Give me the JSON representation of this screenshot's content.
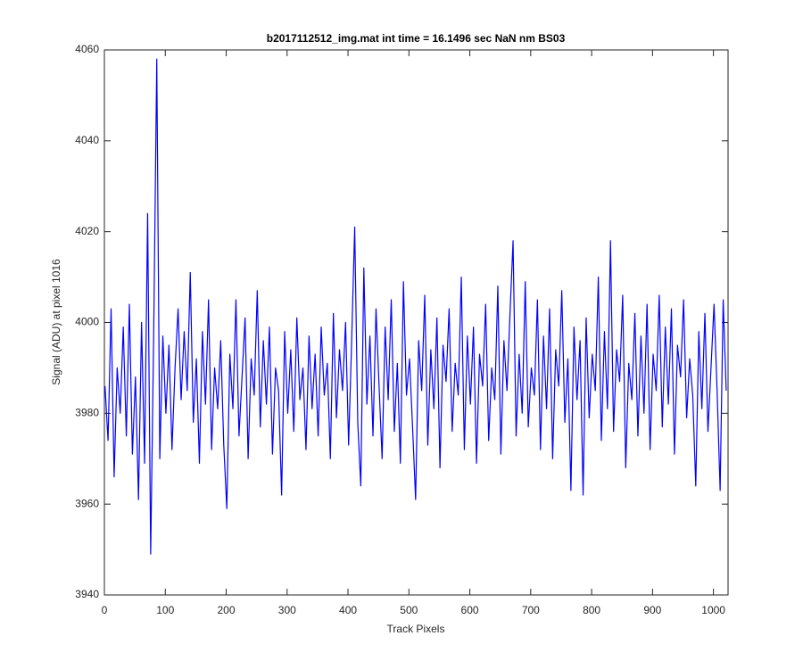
{
  "chart_data": {
    "type": "line",
    "title": "b2017112512_img.mat int time = 16.1496 sec  NaN nm BS03",
    "xlabel": "Track Pixels",
    "ylabel": "Signal (ADU) at pixel 1016",
    "color": "#0000ff",
    "xlim": [
      0,
      1024
    ],
    "xticks": [
      0,
      100,
      200,
      300,
      400,
      500,
      600,
      700,
      800,
      900,
      1000
    ],
    "ylim": [
      3940,
      4060
    ],
    "yticks": [
      3940,
      3960,
      3980,
      4000,
      4020,
      4040,
      4060
    ],
    "x": [
      1,
      6,
      11,
      16,
      21,
      26,
      31,
      36,
      41,
      46,
      51,
      56,
      61,
      66,
      71,
      76,
      81,
      86,
      91,
      96,
      101,
      106,
      111,
      116,
      121,
      126,
      131,
      136,
      141,
      146,
      151,
      156,
      161,
      166,
      171,
      176,
      181,
      186,
      191,
      196,
      201,
      206,
      211,
      216,
      221,
      226,
      231,
      236,
      241,
      246,
      251,
      256,
      261,
      266,
      271,
      276,
      281,
      286,
      291,
      296,
      301,
      306,
      311,
      316,
      321,
      326,
      331,
      336,
      341,
      346,
      351,
      356,
      361,
      366,
      371,
      376,
      381,
      386,
      391,
      396,
      401,
      406,
      411,
      416,
      421,
      426,
      431,
      436,
      441,
      446,
      451,
      456,
      461,
      466,
      471,
      476,
      481,
      486,
      491,
      496,
      501,
      506,
      511,
      516,
      521,
      526,
      531,
      536,
      541,
      546,
      551,
      556,
      561,
      566,
      571,
      576,
      581,
      586,
      591,
      596,
      601,
      606,
      611,
      616,
      621,
      626,
      631,
      636,
      641,
      646,
      651,
      656,
      661,
      666,
      671,
      676,
      681,
      686,
      691,
      696,
      701,
      706,
      711,
      716,
      721,
      726,
      731,
      736,
      741,
      746,
      751,
      756,
      761,
      766,
      771,
      776,
      781,
      786,
      791,
      796,
      801,
      806,
      811,
      816,
      821,
      826,
      831,
      836,
      841,
      846,
      851,
      856,
      861,
      866,
      871,
      876,
      881,
      886,
      891,
      896,
      901,
      906,
      911,
      916,
      921,
      926,
      931,
      936,
      941,
      946,
      951,
      956,
      961,
      966,
      971,
      976,
      981,
      986,
      991,
      996,
      1001,
      1006,
      1011,
      1016,
      1021
    ],
    "values": [
      3986,
      3974,
      4003,
      3966,
      3990,
      3980,
      3999,
      3975,
      4004,
      3971,
      3988,
      3961,
      4000,
      3969,
      4024,
      3949,
      3998,
      4058,
      3970,
      3997,
      3980,
      3995,
      3972,
      3990,
      4003,
      3983,
      3998,
      3985,
      4011,
      3978,
      3992,
      3969,
      3998,
      3982,
      4005,
      3972,
      3990,
      3981,
      3996,
      3973,
      3959,
      3993,
      3981,
      4005,
      3975,
      3988,
      4001,
      3970,
      3992,
      3984,
      4007,
      3977,
      3996,
      3982,
      3999,
      3971,
      3990,
      3985,
      3962,
      3998,
      3980,
      3994,
      3976,
      4001,
      3983,
      3990,
      3972,
      3997,
      3981,
      3993,
      3975,
      3999,
      3984,
      3991,
      3970,
      4002,
      3979,
      3994,
      3985,
      4000,
      3973,
      3996,
      4021,
      3978,
      3964,
      4012,
      3982,
      3997,
      3975,
      4003,
      3986,
      3970,
      3999,
      3983,
      4005,
      3976,
      3991,
      3969,
      4009,
      3984,
      3992,
      3977,
      3961,
      3996,
      3985,
      4006,
      3973,
      3994,
      3981,
      4001,
      3968,
      3995,
      3987,
      4003,
      3976,
      3991,
      3984,
      4010,
      3972,
      3997,
      3982,
      3999,
      3969,
      3993,
      3986,
      4004,
      3974,
      3990,
      3983,
      4008,
      3971,
      3996,
      3985,
      4002,
      4018,
      3975,
      3993,
      3980,
      4009,
      3977,
      3990,
      3984,
      4005,
      3972,
      3997,
      3981,
      4003,
      3970,
      3994,
      3986,
      4007,
      3978,
      3992,
      3963,
      3999,
      3983,
      3996,
      3962,
      4001,
      3979,
      3993,
      3985,
      4010,
      3974,
      3998,
      3981,
      4018,
      3976,
      3994,
      3987,
      4006,
      3968,
      3991,
      3983,
      4002,
      3975,
      3997,
      3980,
      4004,
      3972,
      3993,
      3985,
      4006,
      3977,
      3999,
      3982,
      4003,
      3971,
      3995,
      3988,
      4005,
      3979,
      3992,
      3984,
      3964,
      3998,
      3981,
      4002,
      3976,
      3990,
      4004,
      3985,
      3963,
      4005,
      3985
    ]
  }
}
